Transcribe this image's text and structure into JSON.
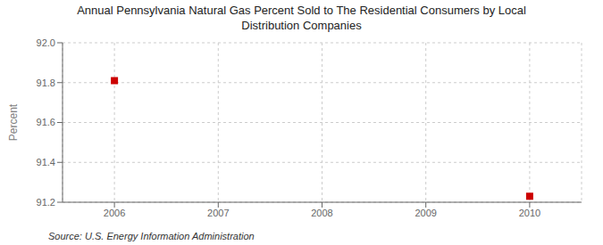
{
  "chart_data": {
    "type": "scatter",
    "title": "Annual Pennsylvania Natural Gas Percent Sold to The Residential Consumers by Local\nDistribution Companies",
    "ylabel": "Percent",
    "source": "Source: U.S. Energy Information Administration",
    "x": [
      2006,
      2010
    ],
    "values": [
      91.81,
      91.23
    ],
    "color": "#cc0000",
    "marker": "square",
    "xlim": [
      2005.5,
      2010.5
    ],
    "xticks": [
      2006,
      2007,
      2008,
      2009,
      2010
    ],
    "ylim": [
      91.2,
      92.0
    ],
    "yticks": [
      91.2,
      91.4,
      91.6,
      91.8,
      {
        "value": 92.0,
        "label": "92.0"
      }
    ],
    "grid": true
  }
}
